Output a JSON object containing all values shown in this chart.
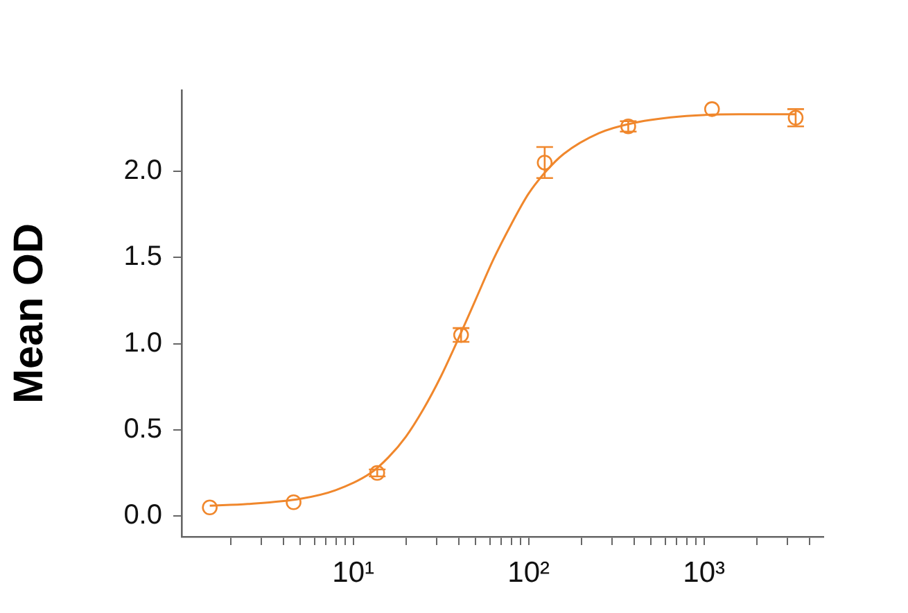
{
  "chart_data": {
    "type": "scatter",
    "ylabel": "Mean OD",
    "log": "x",
    "xlim": [
      1.05,
      4800
    ],
    "ylim": [
      -0.12,
      2.47
    ],
    "xticks": [
      {
        "value": 2,
        "label": null
      },
      {
        "value": 3,
        "label": null
      },
      {
        "value": 4,
        "label": null
      },
      {
        "value": 5,
        "label": null
      },
      {
        "value": 6,
        "label": null
      },
      {
        "value": 7,
        "label": null
      },
      {
        "value": 8,
        "label": null
      },
      {
        "value": 9,
        "label": null
      },
      {
        "value": 10,
        "label": "10¹"
      },
      {
        "value": 20,
        "label": null
      },
      {
        "value": 30,
        "label": null
      },
      {
        "value": 40,
        "label": null
      },
      {
        "value": 50,
        "label": null
      },
      {
        "value": 60,
        "label": null
      },
      {
        "value": 70,
        "label": null
      },
      {
        "value": 80,
        "label": null
      },
      {
        "value": 90,
        "label": null
      },
      {
        "value": 100,
        "label": "10²"
      },
      {
        "value": 200,
        "label": null
      },
      {
        "value": 300,
        "label": null
      },
      {
        "value": 400,
        "label": null
      },
      {
        "value": 500,
        "label": null
      },
      {
        "value": 600,
        "label": null
      },
      {
        "value": 700,
        "label": null
      },
      {
        "value": 800,
        "label": null
      },
      {
        "value": 900,
        "label": null
      },
      {
        "value": 1000,
        "label": "10³"
      },
      {
        "value": 2000,
        "label": null
      },
      {
        "value": 3000,
        "label": null
      },
      {
        "value": 4000,
        "label": null
      }
    ],
    "yticks": [
      {
        "value": 0,
        "label": "0.0"
      },
      {
        "value": 0.5,
        "label": "0.5"
      },
      {
        "value": 1,
        "label": "1.0"
      },
      {
        "value": 1.5,
        "label": "1.5"
      },
      {
        "value": 2,
        "label": "2.0"
      }
    ],
    "grid": false,
    "legend": false,
    "series": [
      {
        "marker": "circle",
        "color": "#f0872c",
        "x": [
          1.52,
          4.57,
          13.7,
          41.2,
          123.5,
          370,
          1111,
          3333
        ],
        "values": [
          0.05,
          0.08,
          0.25,
          1.05,
          2.05,
          2.26,
          2.36,
          2.31
        ],
        "errors": [
          null,
          null,
          0.02,
          0.04,
          0.09,
          0.03,
          null,
          0.05
        ]
      },
      {
        "type": "line",
        "marker": "none",
        "line_style": "solid",
        "color": "#f0872c",
        "x": [
          1.52,
          2.51,
          5.01,
          7.94,
          12.59,
          15.85,
          19.95,
          25.12,
          31.62,
          39.81,
          50.12,
          63.1,
          79.43,
          100,
          125.9,
          158.5,
          251.2,
          398.1,
          794.3,
          1585,
          3333
        ],
        "values": [
          0.06,
          0.07,
          0.1,
          0.15,
          0.25,
          0.34,
          0.46,
          0.62,
          0.81,
          1.03,
          1.26,
          1.49,
          1.69,
          1.87,
          2.0,
          2.1,
          2.22,
          2.28,
          2.32,
          2.33,
          2.33
        ]
      }
    ]
  }
}
